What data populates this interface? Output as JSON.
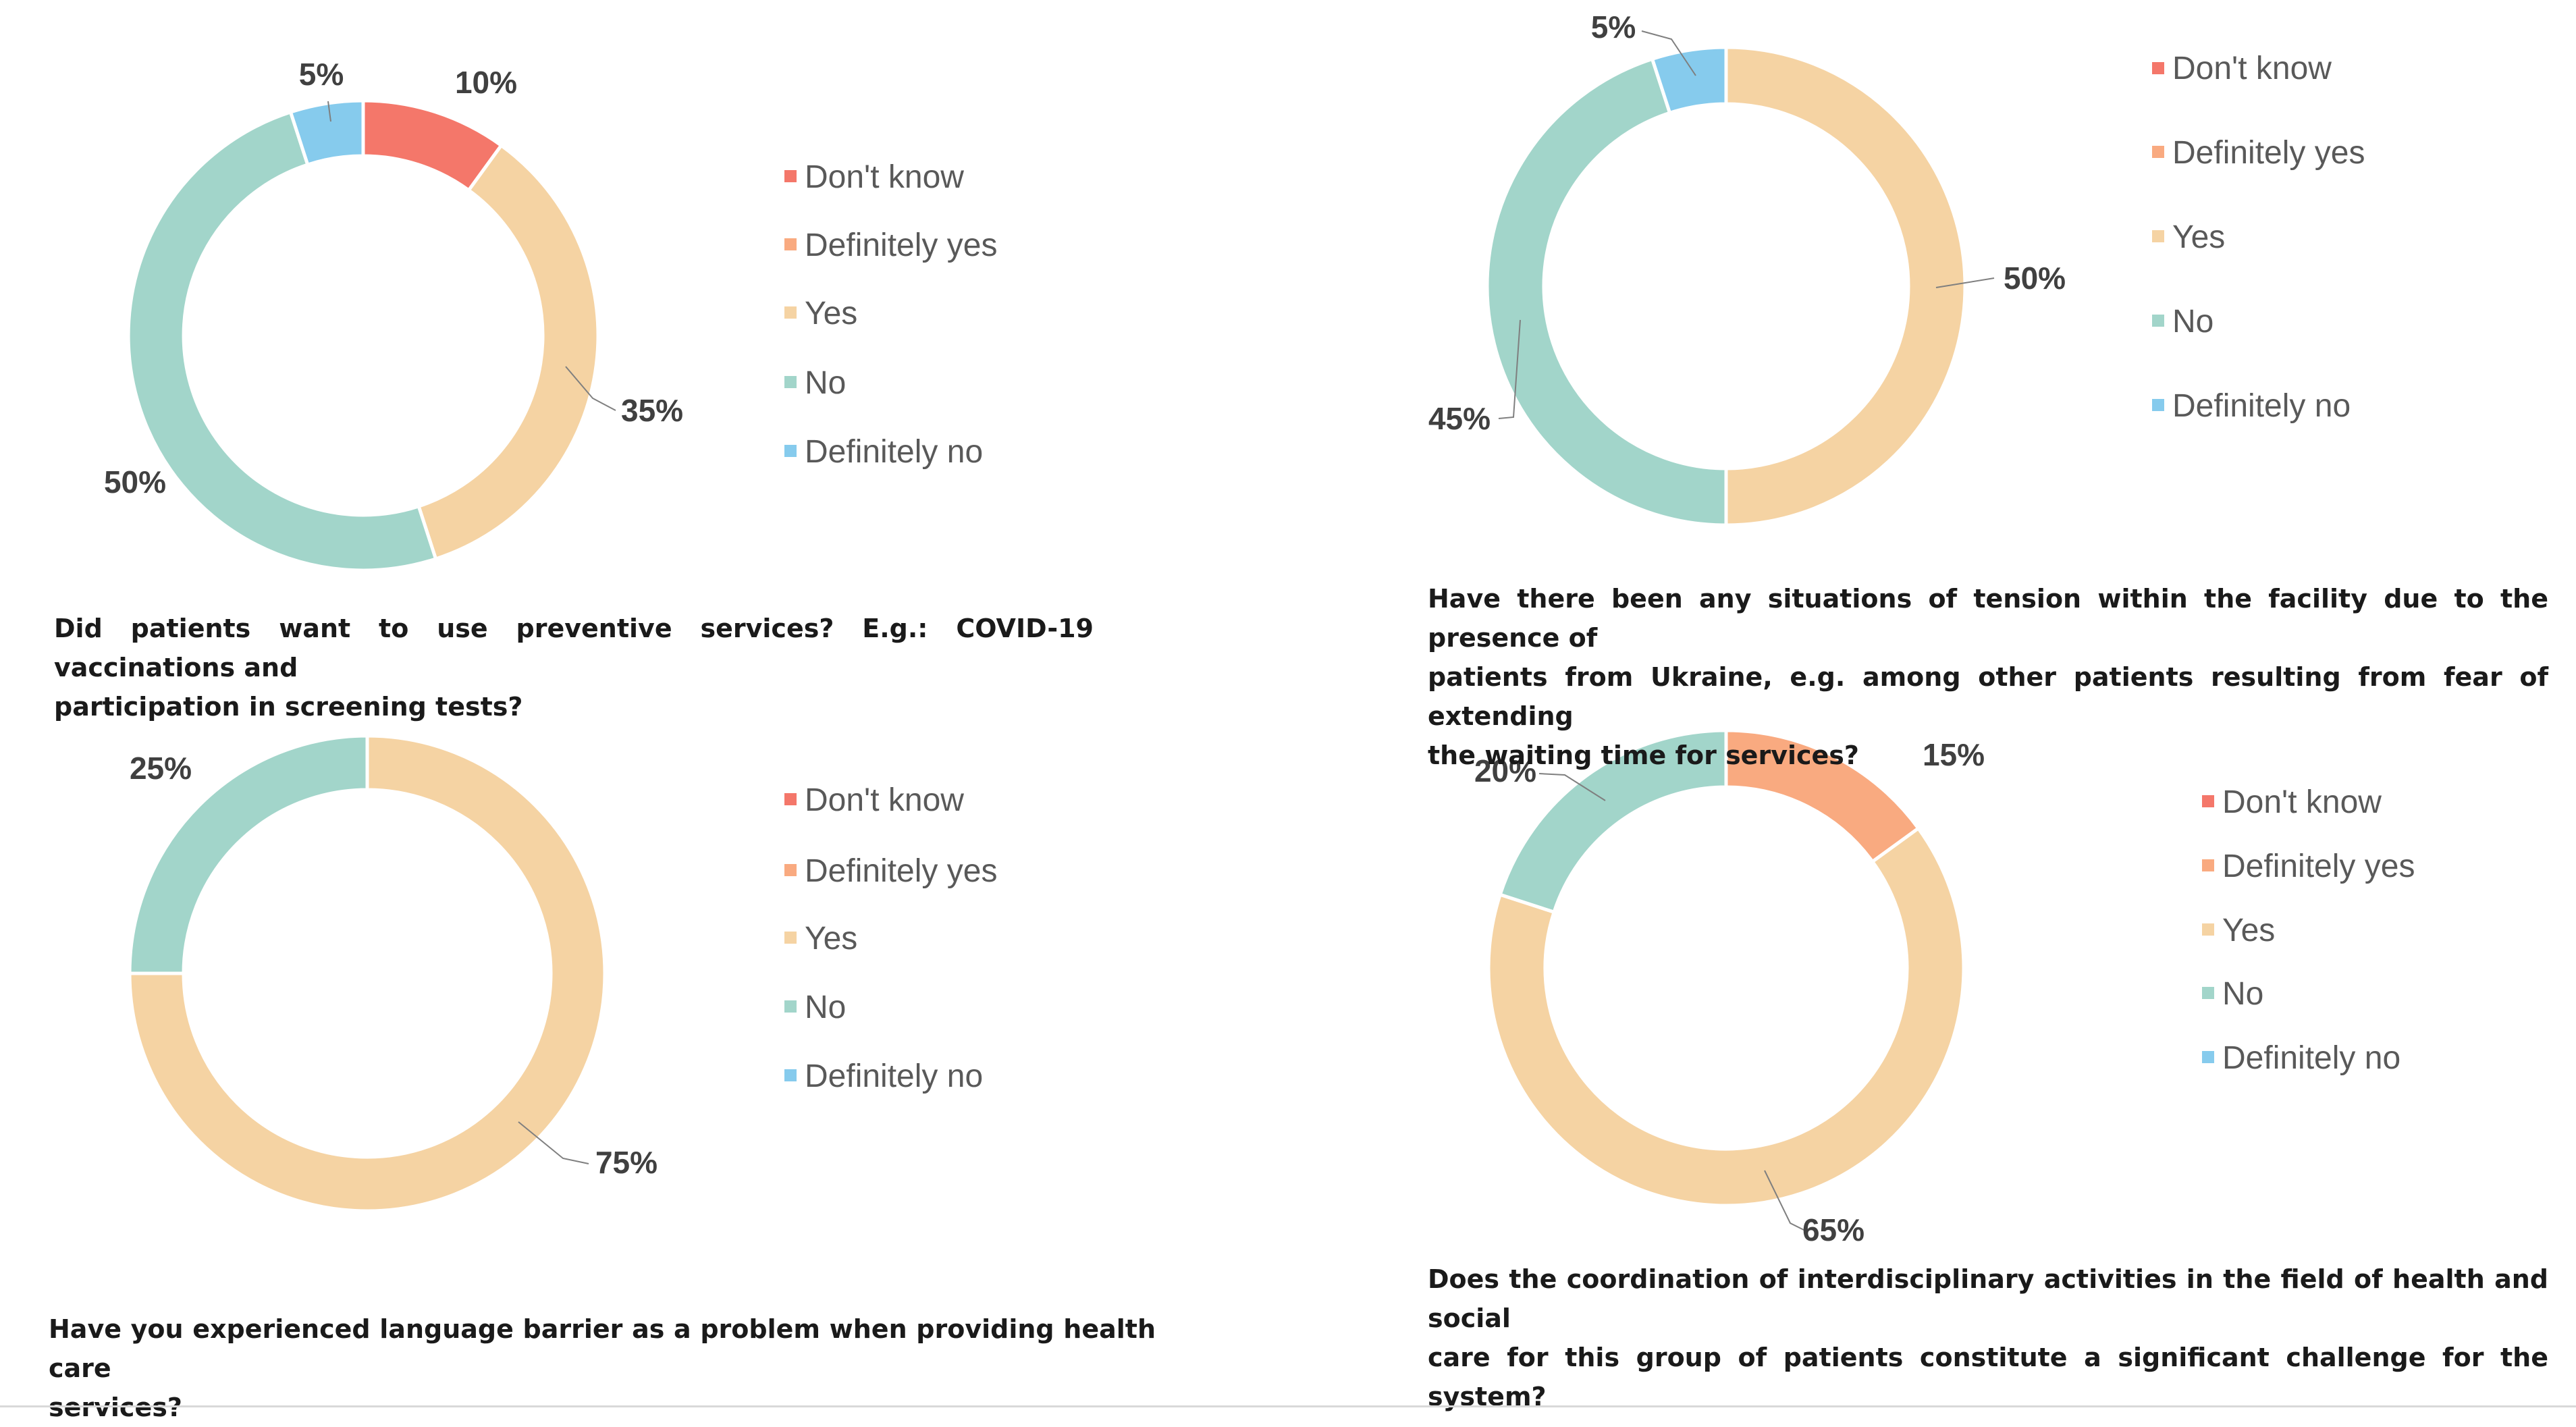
{
  "colors": {
    "dont_know": "#F4776A",
    "definitely_yes": "#F9AA80",
    "yes": "#F5D3A3",
    "no": "#A2D5CA",
    "definitely_no": "#86CBED",
    "leader": "#7f7f7f"
  },
  "chart_data": [
    {
      "type": "pie",
      "donut": true,
      "title": "Did patients want to use preventive services? E.g.: COVID-19 vaccinations and participation in screening tests?",
      "title_lines": [
        "Did patients want to use preventive services? E.g.: COVID-19 vaccinations and",
        "participation in screening tests?"
      ],
      "categories": [
        "Don't know",
        "Definitely yes",
        "Yes",
        "No",
        "Definitely no"
      ],
      "values": [
        10,
        0,
        35,
        50,
        5
      ],
      "labels": [
        "10%",
        "",
        "35%",
        "50%",
        "5%"
      ],
      "legend": "right"
    },
    {
      "type": "pie",
      "donut": true,
      "title": "Have there been any situations of tension within the facility due to the presence of patients from Ukraine, e.g. among other patients resulting from fear of extending the waiting time for services?",
      "title_lines": [
        "Have there been any situations of tension within the facility due to the presence of",
        "patients from Ukraine, e.g. among other patients resulting from fear of extending",
        "the waiting time for services?"
      ],
      "categories": [
        "Don't know",
        "Definitely yes",
        "Yes",
        "No",
        "Definitely no"
      ],
      "values": [
        0,
        0,
        50,
        45,
        5
      ],
      "labels": [
        "",
        "",
        "50%",
        "45%",
        "5%"
      ],
      "legend": "right"
    },
    {
      "type": "pie",
      "donut": true,
      "title": "Have you experienced language barrier as a problem when providing health care services?",
      "title_lines": [
        "Have you experienced language barrier as a problem when providing health care",
        "services?"
      ],
      "categories": [
        "Don't know",
        "Definitely yes",
        "Yes",
        "No",
        "Definitely no"
      ],
      "values": [
        0,
        0,
        75,
        25,
        0
      ],
      "labels": [
        "",
        "",
        "75%",
        "25%",
        ""
      ],
      "legend": "right"
    },
    {
      "type": "pie",
      "donut": true,
      "title": "Does the coordination of interdisciplinary activities in the field of health and social care for this group of patients constitute a significant challenge for the system?",
      "title_lines": [
        "Does the coordination of interdisciplinary activities in the field of health and social",
        "care for this group of patients constitute a significant challenge for the system?"
      ],
      "categories": [
        "Don't know",
        "Definitely yes",
        "Yes",
        "No",
        "Definitely no"
      ],
      "values": [
        0,
        15,
        65,
        20,
        0
      ],
      "labels": [
        "",
        "15%",
        "65%",
        "20%",
        ""
      ],
      "legend": "right"
    }
  ]
}
